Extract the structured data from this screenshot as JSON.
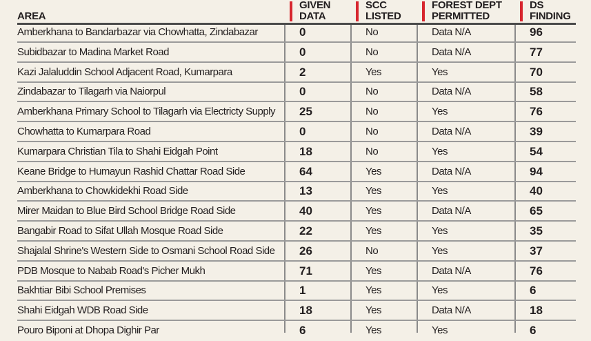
{
  "headers": {
    "area": "AREA",
    "given_1": "GIVEN",
    "given_2": "DATA",
    "scc_1": "SCC",
    "scc_2": "LISTED",
    "forest_1": "FOREST DEPT",
    "forest_2": "PERMITTED",
    "ds_1": "DS",
    "ds_2": "FINDING"
  },
  "colors": {
    "accent": "#d7262e",
    "background": "#f4f0e7"
  },
  "rows": [
    {
      "area": "Amberkhana to Bandarbazar via Chowhatta, Zindabazar",
      "given": "0",
      "scc": "No",
      "forest": "Data N/A",
      "ds": "96"
    },
    {
      "area": "Subidbazar to Madina Market Road",
      "given": "0",
      "scc": "No",
      "forest": "Data N/A",
      "ds": "77"
    },
    {
      "area": "Kazi Jalaluddin School Adjacent Road, Kumarpara",
      "given": "2",
      "scc": "Yes",
      "forest": "Yes",
      "ds": "70"
    },
    {
      "area": "Zindabazar to Tilagarh via Naiorpul",
      "given": "0",
      "scc": "No",
      "forest": "Data N/A",
      "ds": "58"
    },
    {
      "area": "Amberkhana Primary School to Tilagarh via Electricty Supply",
      "given": "25",
      "scc": "No",
      "forest": "Yes",
      "ds": "76"
    },
    {
      "area": "Chowhatta to Kumarpara Road",
      "given": "0",
      "scc": "No",
      "forest": "Data N/A",
      "ds": "39"
    },
    {
      "area": "Kumarpara Christian Tila to Shahi Eidgah Point",
      "given": "18",
      "scc": "No",
      "forest": "Yes",
      "ds": "54"
    },
    {
      "area": "Keane Bridge to Humayun Rashid Chattar Road Side",
      "given": "64",
      "scc": "Yes",
      "forest": "Data N/A",
      "ds": "94"
    },
    {
      "area": "Amberkhana to Chowkidekhi Road Side",
      "given": "13",
      "scc": "Yes",
      "forest": "Yes",
      "ds": "40"
    },
    {
      "area": "Mirer Maidan to Blue Bird School Bridge Road Side",
      "given": "40",
      "scc": "Yes",
      "forest": "Data N/A",
      "ds": "65"
    },
    {
      "area": "Bangabir Road to Sifat Ullah Mosque Road Side",
      "given": "22",
      "scc": "Yes",
      "forest": "Yes",
      "ds": "35"
    },
    {
      "area": "Shajalal Shrine's Western Side to Osmani School Road Side",
      "given": "26",
      "scc": "No",
      "forest": "Yes",
      "ds": "37"
    },
    {
      "area": "PDB Mosque to Nabab Road's Picher Mukh",
      "given": "71",
      "scc": "Yes",
      "forest": "Data N/A",
      "ds": "76"
    },
    {
      "area": "Bakhtiar Bibi School Premises",
      "given": "1",
      "scc": "Yes",
      "forest": "Yes",
      "ds": "6"
    },
    {
      "area": "Shahi Eidgah WDB Road Side",
      "given": "18",
      "scc": "Yes",
      "forest": "Data N/A",
      "ds": "18"
    },
    {
      "area": "Pouro Biponi at Dhopa Dighir Par",
      "given": "6",
      "scc": "Yes",
      "forest": "Yes",
      "ds": "6"
    }
  ]
}
